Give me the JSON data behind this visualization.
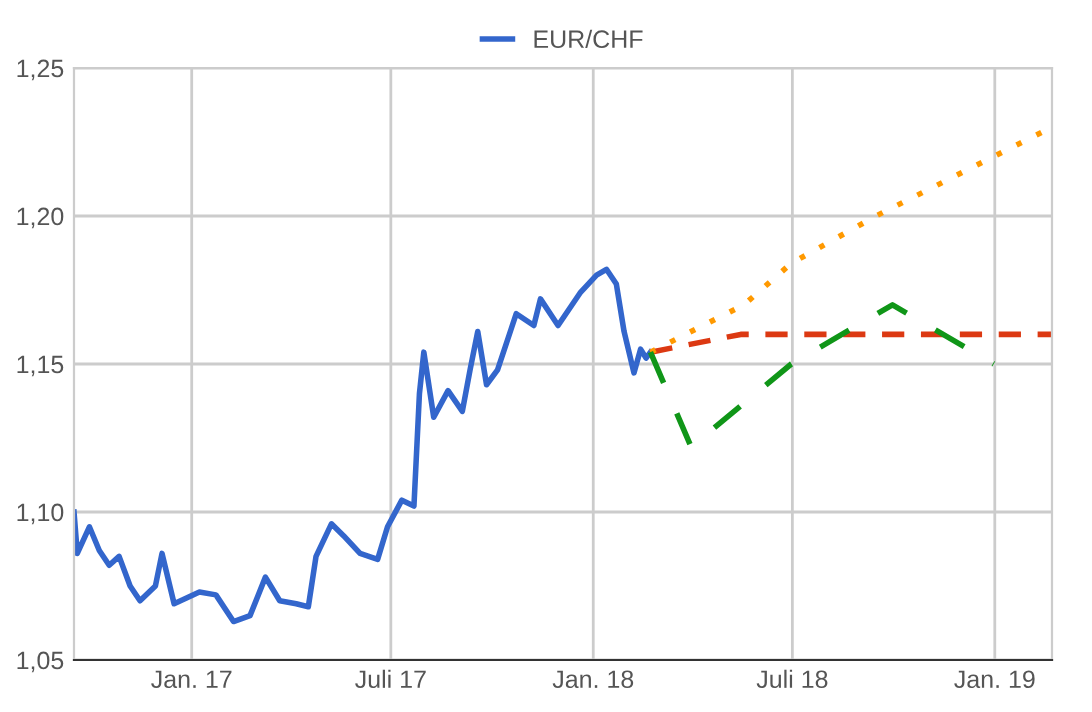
{
  "chart_data": {
    "type": "line",
    "xlim": [
      "2016-09-16",
      "2019-02-22"
    ],
    "xticks": [
      {
        "value": "2017-01-01",
        "label": "Jan. 17"
      },
      {
        "value": "2017-07-01",
        "label": "Juli 17"
      },
      {
        "value": "2018-01-01",
        "label": "Jan. 18"
      },
      {
        "value": "2018-07-01",
        "label": "Juli 18"
      },
      {
        "value": "2019-01-01",
        "label": "Jan. 19"
      }
    ],
    "ylim": [
      1.05,
      1.25
    ],
    "yticks": [
      {
        "value": 1.05,
        "label": "1,05"
      },
      {
        "value": 1.1,
        "label": "1,10"
      },
      {
        "value": 1.15,
        "label": "1,15"
      },
      {
        "value": 1.2,
        "label": "1,20"
      },
      {
        "value": 1.25,
        "label": "1,25"
      }
    ],
    "grid": true,
    "legend": "top",
    "series": [
      {
        "name": "EUR/CHF",
        "color": "#3366cc",
        "line_style": "solid",
        "x": [
          "2016-09-16",
          "2016-09-19",
          "2016-09-30",
          "2016-10-09",
          "2016-10-18",
          "2016-10-27",
          "2016-11-06",
          "2016-11-15",
          "2016-11-29",
          "2016-12-05",
          "2016-12-16",
          "2017-01-08",
          "2017-01-23",
          "2017-02-08",
          "2017-02-23",
          "2017-03-09",
          "2017-03-22",
          "2017-04-06",
          "2017-04-17",
          "2017-04-24",
          "2017-05-08",
          "2017-05-19",
          "2017-06-03",
          "2017-06-19",
          "2017-06-28",
          "2017-07-11",
          "2017-07-22",
          "2017-07-27",
          "2017-07-31",
          "2017-08-09",
          "2017-08-22",
          "2017-09-04",
          "2017-09-11",
          "2017-09-18",
          "2017-09-26",
          "2017-10-06",
          "2017-10-23",
          "2017-11-08",
          "2017-11-14",
          "2017-11-30",
          "2017-12-20",
          "2018-01-04",
          "2018-01-13",
          "2018-01-22",
          "2018-01-29",
          "2018-02-07",
          "2018-02-13",
          "2018-02-18",
          "2018-02-22"
        ],
        "values": [
          1.1,
          1.086,
          1.095,
          1.087,
          1.082,
          1.085,
          1.075,
          1.07,
          1.075,
          1.086,
          1.069,
          1.073,
          1.072,
          1.063,
          1.065,
          1.078,
          1.07,
          1.069,
          1.068,
          1.085,
          1.096,
          1.092,
          1.086,
          1.084,
          1.095,
          1.104,
          1.102,
          1.14,
          1.154,
          1.132,
          1.141,
          1.134,
          1.148,
          1.161,
          1.143,
          1.148,
          1.167,
          1.163,
          1.172,
          1.163,
          1.174,
          1.18,
          1.182,
          1.177,
          1.161,
          1.147,
          1.155,
          1.152,
          1.154
        ]
      },
      {
        "color": "#dc3912",
        "line_style": "dashed",
        "x": [
          "2018-02-22",
          "2018-05-15",
          "2019-02-22"
        ],
        "values": [
          1.154,
          1.16,
          1.16
        ]
      },
      {
        "color": "#ff9900",
        "line_style": "dotted",
        "x": [
          "2018-02-22",
          "2018-05-18",
          "2018-06-30",
          "2018-09-15",
          "2019-02-22"
        ],
        "values": [
          1.154,
          1.17,
          1.184,
          1.2,
          1.23
        ]
      },
      {
        "color": "#109618",
        "line_style": "longdash",
        "x": [
          "2018-02-22",
          "2018-03-31",
          "2018-06-30",
          "2018-09-30",
          "2018-12-31"
        ],
        "values": [
          1.154,
          1.122,
          1.15,
          1.17,
          1.15
        ]
      }
    ]
  }
}
